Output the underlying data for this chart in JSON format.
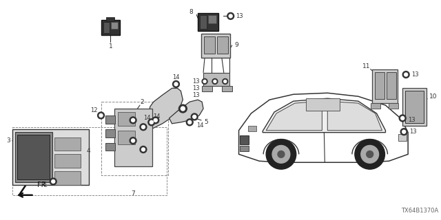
{
  "background_color": "#ffffff",
  "diagram_code": "TX64B1370A",
  "line_color": "#333333",
  "text_color": "#333333"
}
